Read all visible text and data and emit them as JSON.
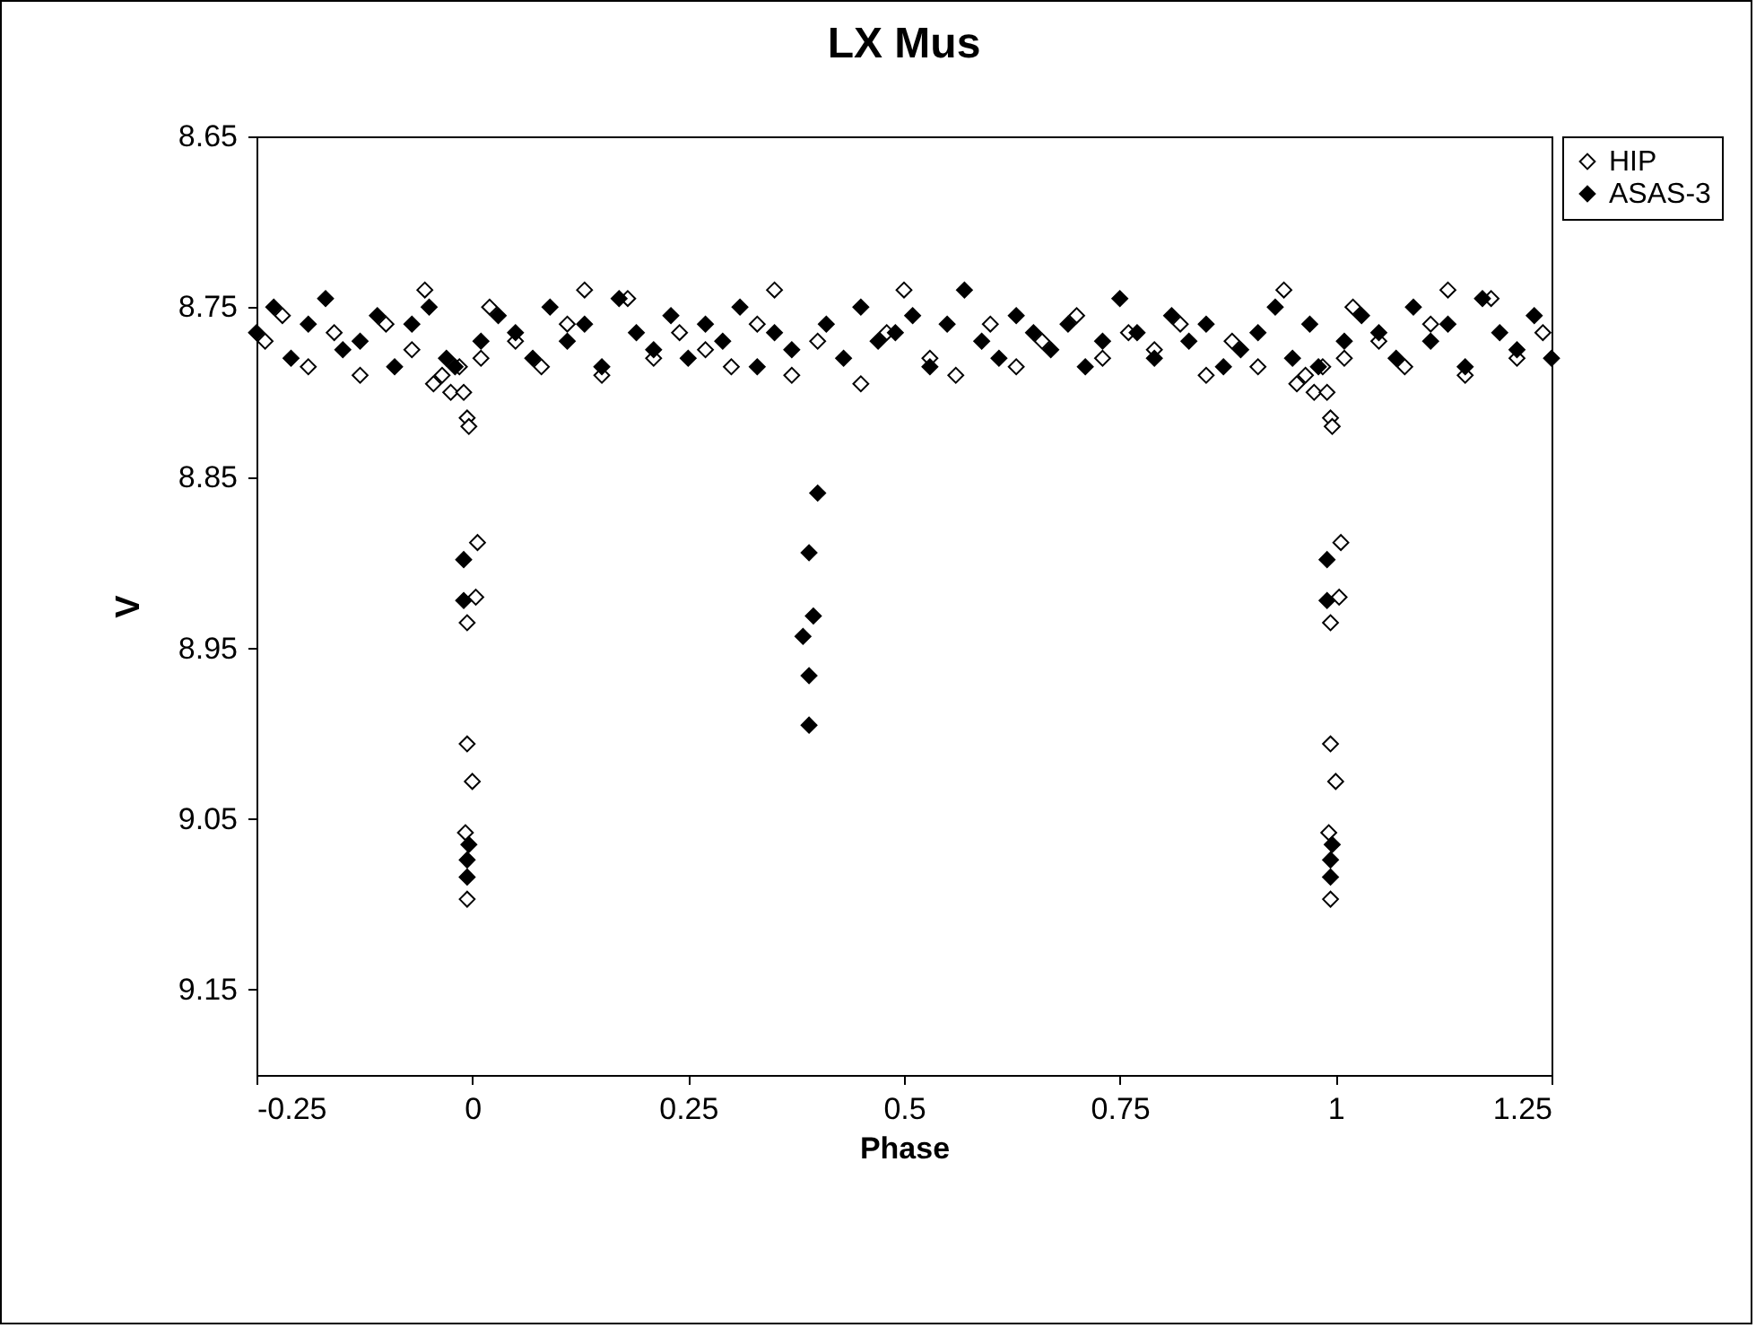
{
  "chart_data": {
    "type": "scatter",
    "title": "LX Mus",
    "xlabel": "Phase",
    "ylabel": "V",
    "xlim": [
      -0.25,
      1.25
    ],
    "xticks": [
      -0.25,
      0,
      0.25,
      0.5,
      0.75,
      1,
      1.25
    ],
    "ylim": [
      9.2,
      8.65
    ],
    "yticks": [
      8.65,
      8.75,
      8.85,
      8.95,
      9.05,
      9.15
    ],
    "marker": "diamond",
    "legend": "right",
    "series": [
      {
        "name": "HIP",
        "color": "#ffffff",
        "x": [
          -0.24,
          -0.22,
          -0.19,
          -0.16,
          -0.13,
          -0.1,
          -0.07,
          -0.055,
          -0.045,
          -0.035,
          -0.025,
          -0.015,
          -0.01,
          -0.006,
          -0.004,
          0.006,
          -0.006,
          -0.006,
          0,
          -0.008,
          -0.006,
          0.004,
          0.01,
          0.02,
          0.05,
          0.08,
          0.11,
          0.13,
          0.15,
          0.18,
          0.21,
          0.24,
          0.27,
          0.3,
          0.33,
          0.35,
          0.37,
          0.4,
          0.45,
          0.48,
          0.5,
          0.53,
          0.56,
          0.6,
          0.63,
          0.66,
          0.7,
          0.73,
          0.76,
          0.79,
          0.82,
          0.85,
          0.88,
          0.91,
          0.94,
          0.955,
          0.965,
          0.975,
          0.985,
          0.99,
          0.994,
          0.996,
          1.006,
          0.994,
          0.994,
          1,
          0.992,
          0.994,
          1.004,
          1.01,
          1.02,
          1.05,
          1.08,
          1.11,
          1.13,
          1.15,
          1.18,
          1.21,
          1.24
        ],
        "values": [
          8.77,
          8.755,
          8.785,
          8.765,
          8.79,
          8.76,
          8.775,
          8.74,
          8.795,
          8.79,
          8.8,
          8.785,
          8.8,
          8.815,
          8.82,
          8.888,
          8.935,
          9.006,
          9.028,
          9.058,
          9.097,
          8.92,
          8.78,
          8.75,
          8.77,
          8.785,
          8.76,
          8.74,
          8.79,
          8.745,
          8.78,
          8.765,
          8.775,
          8.785,
          8.76,
          8.74,
          8.79,
          8.77,
          8.795,
          8.765,
          8.74,
          8.78,
          8.79,
          8.76,
          8.785,
          8.77,
          8.755,
          8.78,
          8.765,
          8.775,
          8.76,
          8.79,
          8.77,
          8.785,
          8.74,
          8.795,
          8.79,
          8.8,
          8.785,
          8.8,
          8.815,
          8.82,
          8.888,
          8.935,
          9.006,
          9.028,
          9.058,
          9.097,
          8.92,
          8.78,
          8.75,
          8.77,
          8.785,
          8.76,
          8.74,
          8.79,
          8.745,
          8.78,
          8.765
        ]
      },
      {
        "name": "ASAS-3",
        "color": "#000000",
        "x": [
          -0.25,
          -0.23,
          -0.21,
          -0.19,
          -0.17,
          -0.15,
          -0.13,
          -0.11,
          -0.09,
          -0.07,
          -0.05,
          -0.03,
          -0.02,
          -0.01,
          -0.01,
          -0.004,
          -0.006,
          -0.006,
          0.01,
          0.03,
          0.05,
          0.07,
          0.09,
          0.11,
          0.13,
          0.15,
          0.17,
          0.19,
          0.21,
          0.23,
          0.25,
          0.27,
          0.29,
          0.31,
          0.33,
          0.35,
          0.37,
          0.4,
          0.39,
          0.395,
          0.383,
          0.39,
          0.39,
          0.41,
          0.43,
          0.45,
          0.47,
          0.49,
          0.51,
          0.53,
          0.55,
          0.57,
          0.59,
          0.61,
          0.63,
          0.65,
          0.67,
          0.69,
          0.71,
          0.73,
          0.75,
          0.77,
          0.79,
          0.81,
          0.83,
          0.85,
          0.87,
          0.89,
          0.91,
          0.93,
          0.95,
          0.97,
          0.98,
          0.99,
          0.99,
          0.996,
          0.994,
          0.994,
          1.01,
          1.03,
          1.05,
          1.07,
          1.09,
          1.11,
          1.13,
          1.15,
          1.17,
          1.19,
          1.21,
          1.23,
          1.25
        ],
        "values": [
          8.765,
          8.75,
          8.78,
          8.76,
          8.745,
          8.775,
          8.77,
          8.755,
          8.785,
          8.76,
          8.75,
          8.78,
          8.785,
          8.898,
          8.922,
          9.065,
          9.084,
          9.074,
          8.77,
          8.755,
          8.765,
          8.78,
          8.75,
          8.77,
          8.76,
          8.785,
          8.745,
          8.765,
          8.775,
          8.755,
          8.78,
          8.76,
          8.77,
          8.75,
          8.785,
          8.765,
          8.775,
          8.859,
          8.894,
          8.931,
          8.943,
          8.966,
          8.995,
          8.76,
          8.78,
          8.75,
          8.77,
          8.765,
          8.755,
          8.785,
          8.76,
          8.74,
          8.77,
          8.78,
          8.755,
          8.765,
          8.775,
          8.76,
          8.785,
          8.77,
          8.745,
          8.765,
          8.78,
          8.755,
          8.77,
          8.76,
          8.785,
          8.775,
          8.765,
          8.75,
          8.78,
          8.76,
          8.785,
          8.898,
          8.922,
          9.065,
          9.084,
          9.074,
          8.77,
          8.755,
          8.765,
          8.78,
          8.75,
          8.77,
          8.76,
          8.785,
          8.745,
          8.765,
          8.775,
          8.755,
          8.78
        ]
      }
    ]
  }
}
